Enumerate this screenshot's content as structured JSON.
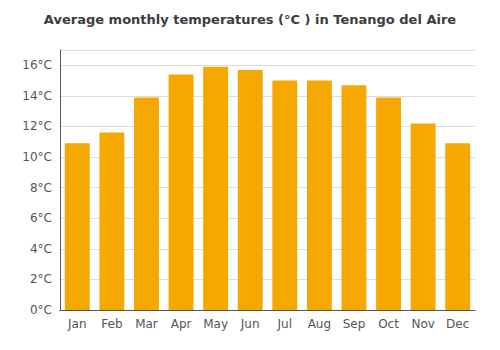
{
  "chart_data": {
    "type": "bar",
    "title": "Average monthly temperatures (°C ) in Tenango del Aire",
    "categories": [
      "Jan",
      "Feb",
      "Mar",
      "Apr",
      "May",
      "Jun",
      "Jul",
      "Aug",
      "Sep",
      "Oct",
      "Nov",
      "Dec"
    ],
    "values": [
      10.9,
      11.6,
      13.9,
      15.4,
      15.9,
      15.7,
      15.0,
      15.0,
      14.7,
      13.9,
      12.2,
      10.9
    ],
    "color": "#F5A800",
    "ylim": [
      0,
      17
    ],
    "yticks": [
      {
        "value": 0,
        "label": "0°C"
      },
      {
        "value": 2,
        "label": "2°C"
      },
      {
        "value": 4,
        "label": "4°C"
      },
      {
        "value": 6,
        "label": "6°C"
      },
      {
        "value": 8,
        "label": "8°C"
      },
      {
        "value": 10,
        "label": "10°C"
      },
      {
        "value": 12,
        "label": "12°C"
      },
      {
        "value": 14,
        "label": "14°C"
      },
      {
        "value": 16,
        "label": "16°C"
      }
    ],
    "grid": true
  }
}
